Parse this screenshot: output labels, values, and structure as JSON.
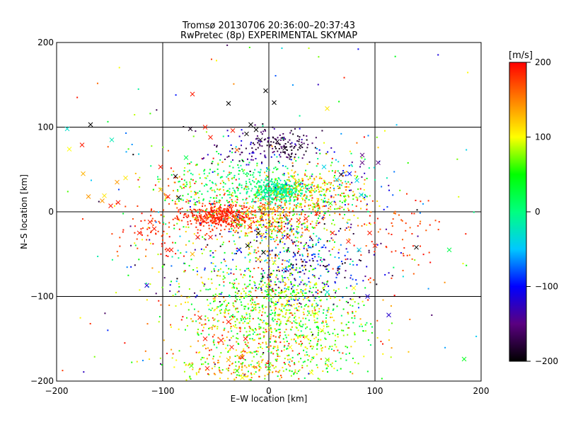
{
  "chart_data": {
    "type": "scatter",
    "title": "Tromsø 20130706 20:36:00–20:37:43",
    "subtitle": "RwPretec (8p) EXPERIMENTAL SKYMAP",
    "xlabel": "E–W location [km]",
    "ylabel": "N–S location [km]",
    "xlim": [
      -200,
      200
    ],
    "ylim": [
      -200,
      200
    ],
    "xticks": [
      -200,
      -100,
      0,
      100,
      200
    ],
    "yticks": [
      -200,
      -100,
      0,
      100,
      200
    ],
    "grid": true,
    "marker_styles": [
      "cross",
      "dot"
    ],
    "colorbar": {
      "label": "[m/s]",
      "range": [
        -200,
        200
      ],
      "ticks": [
        200,
        100,
        0,
        -100,
        -200
      ],
      "colors": [
        "#000000",
        "#5a0080",
        "#0000ff",
        "#00c8ff",
        "#00ff80",
        "#00ff00",
        "#ffff00",
        "#ff8000",
        "#ff0000"
      ]
    },
    "series": [
      {
        "marker": "cross",
        "points": [
          {
            "x": -168,
            "y": 103,
            "v": -200
          },
          {
            "x": -190,
            "y": 98,
            "v": -30
          },
          {
            "x": -188,
            "y": 74,
            "v": 100
          },
          {
            "x": -176,
            "y": 79,
            "v": 190
          },
          {
            "x": -175,
            "y": 45,
            "v": 130
          },
          {
            "x": -170,
            "y": 18,
            "v": 140
          },
          {
            "x": -155,
            "y": 19,
            "v": 110
          },
          {
            "x": -157,
            "y": 13,
            "v": 140
          },
          {
            "x": -143,
            "y": 35,
            "v": 140
          },
          {
            "x": -142,
            "y": 11,
            "v": 190
          },
          {
            "x": -149,
            "y": 7,
            "v": 190
          },
          {
            "x": -135,
            "y": 40,
            "v": 110
          },
          {
            "x": -148,
            "y": 85,
            "v": -20
          },
          {
            "x": -115,
            "y": -87,
            "v": -120
          },
          {
            "x": -102,
            "y": 53,
            "v": 190
          },
          {
            "x": -102,
            "y": 26,
            "v": 130
          },
          {
            "x": -95,
            "y": 18,
            "v": 190
          },
          {
            "x": -85,
            "y": 17,
            "v": -200
          },
          {
            "x": -88,
            "y": 42,
            "v": -200
          },
          {
            "x": -78,
            "y": 64,
            "v": 20
          },
          {
            "x": -72,
            "y": 139,
            "v": 190
          },
          {
            "x": -74,
            "y": 98,
            "v": -190
          },
          {
            "x": -60,
            "y": 100,
            "v": 190
          },
          {
            "x": -55,
            "y": 88,
            "v": 190
          },
          {
            "x": -38,
            "y": 128,
            "v": -200
          },
          {
            "x": -34,
            "y": 96,
            "v": 190
          },
          {
            "x": -21,
            "y": 92,
            "v": -200
          },
          {
            "x": -17,
            "y": 103,
            "v": -200
          },
          {
            "x": -12,
            "y": 97,
            "v": -200
          },
          {
            "x": -3,
            "y": 143,
            "v": -200
          },
          {
            "x": 5,
            "y": 129,
            "v": -200
          },
          {
            "x": 55,
            "y": 122,
            "v": 110
          },
          {
            "x": -8,
            "y": 85,
            "v": -190
          },
          {
            "x": 8,
            "y": 83,
            "v": -190
          },
          {
            "x": 15,
            "y": 75,
            "v": -190
          },
          {
            "x": 30,
            "y": 78,
            "v": -190
          },
          {
            "x": -30,
            "y": 73,
            "v": 160
          },
          {
            "x": 88,
            "y": 67,
            "v": -150
          },
          {
            "x": 88,
            "y": 58,
            "v": -150
          },
          {
            "x": 103,
            "y": 58,
            "v": -150
          },
          {
            "x": 68,
            "y": 44,
            "v": -190
          },
          {
            "x": 76,
            "y": 45,
            "v": -100
          },
          {
            "x": 83,
            "y": 37,
            "v": -40
          },
          {
            "x": 87,
            "y": 20,
            "v": -40
          },
          {
            "x": 64,
            "y": 38,
            "v": -40
          },
          {
            "x": 52,
            "y": 53,
            "v": -40
          },
          {
            "x": 58,
            "y": 10,
            "v": 60
          },
          {
            "x": -122,
            "y": -25,
            "v": 190
          },
          {
            "x": -112,
            "y": -12,
            "v": 190
          },
          {
            "x": -108,
            "y": -20,
            "v": 190
          },
          {
            "x": -92,
            "y": -45,
            "v": 190
          },
          {
            "x": -72,
            "y": -50,
            "v": 130
          },
          {
            "x": -67,
            "y": -30,
            "v": 190
          },
          {
            "x": -55,
            "y": -30,
            "v": 190
          },
          {
            "x": -45,
            "y": -10,
            "v": 190
          },
          {
            "x": -40,
            "y": -3,
            "v": 190
          },
          {
            "x": -35,
            "y": -2,
            "v": 190
          },
          {
            "x": -18,
            "y": -18,
            "v": 190
          },
          {
            "x": -10,
            "y": -25,
            "v": -200
          },
          {
            "x": -5,
            "y": -48,
            "v": -200
          },
          {
            "x": 10,
            "y": -22,
            "v": 190
          },
          {
            "x": 18,
            "y": -30,
            "v": 190
          },
          {
            "x": 28,
            "y": -10,
            "v": 190
          },
          {
            "x": 35,
            "y": -8,
            "v": 190
          },
          {
            "x": 45,
            "y": -2,
            "v": 190
          },
          {
            "x": 60,
            "y": -25,
            "v": 190
          },
          {
            "x": 75,
            "y": -35,
            "v": 190
          },
          {
            "x": 85,
            "y": -45,
            "v": -40
          },
          {
            "x": 95,
            "y": -25,
            "v": 190
          },
          {
            "x": 100,
            "y": -40,
            "v": 190
          },
          {
            "x": 139,
            "y": -42,
            "v": -200
          },
          {
            "x": 170,
            "y": -45,
            "v": 20
          },
          {
            "x": 113,
            "y": -122,
            "v": -120
          },
          {
            "x": 93,
            "y": -100,
            "v": -120
          },
          {
            "x": 80,
            "y": -90,
            "v": 100
          },
          {
            "x": 55,
            "y": -95,
            "v": -30
          },
          {
            "x": 45,
            "y": -120,
            "v": 100
          },
          {
            "x": 50,
            "y": -140,
            "v": 100
          },
          {
            "x": 35,
            "y": -148,
            "v": 100
          },
          {
            "x": 20,
            "y": -160,
            "v": 100
          },
          {
            "x": 55,
            "y": -175,
            "v": 70
          },
          {
            "x": -22,
            "y": -150,
            "v": 190
          },
          {
            "x": -38,
            "y": -130,
            "v": 190
          },
          {
            "x": -45,
            "y": -152,
            "v": 190
          },
          {
            "x": -60,
            "y": -150,
            "v": 190
          },
          {
            "x": -65,
            "y": -125,
            "v": 190
          },
          {
            "x": -35,
            "y": -160,
            "v": 190
          },
          {
            "x": -25,
            "y": -172,
            "v": 190
          },
          {
            "x": -38,
            "y": -175,
            "v": 130
          },
          {
            "x": -73,
            "y": -182,
            "v": 70
          },
          {
            "x": -58,
            "y": -185,
            "v": 190
          },
          {
            "x": -95,
            "y": -45,
            "v": 190
          },
          {
            "x": -30,
            "y": -188,
            "v": 60
          },
          {
            "x": 0,
            "y": -185,
            "v": 60
          },
          {
            "x": -25,
            "y": -196,
            "v": 100
          },
          {
            "x": 40,
            "y": -190,
            "v": 100
          },
          {
            "x": 184,
            "y": -174,
            "v": 40
          },
          {
            "x": -20,
            "y": -40,
            "v": -200
          },
          {
            "x": -10,
            "y": -56,
            "v": 130
          },
          {
            "x": -28,
            "y": -45,
            "v": -100
          },
          {
            "x": 5,
            "y": -60,
            "v": 100
          },
          {
            "x": 0,
            "y": 10,
            "v": 150
          },
          {
            "x": -5,
            "y": 5,
            "v": 150
          },
          {
            "x": 10,
            "y": 5,
            "v": 150
          }
        ]
      },
      {
        "marker": "dot",
        "clusters": [
          {
            "cx": -48,
            "cy": -5,
            "sx": 18,
            "sy": 7,
            "n": 420,
            "vmin": 170,
            "vmax": 200
          },
          {
            "cx": 10,
            "cy": 25,
            "sx": 12,
            "sy": 6,
            "n": 360,
            "vmin": -30,
            "vmax": 10
          },
          {
            "cx": 35,
            "cy": 30,
            "sx": 22,
            "sy": 10,
            "n": 160,
            "vmin": 60,
            "vmax": 160
          },
          {
            "cx": -20,
            "cy": 35,
            "sx": 25,
            "sy": 15,
            "n": 180,
            "vmin": -20,
            "vmax": 40
          },
          {
            "cx": 15,
            "cy": 78,
            "sx": 14,
            "sy": 9,
            "n": 110,
            "vmin": -200,
            "vmax": -150
          },
          {
            "cx": -15,
            "cy": 72,
            "sx": 20,
            "sy": 15,
            "n": 70,
            "vmin": -200,
            "vmax": -100
          },
          {
            "cx": 0,
            "cy": -10,
            "sx": 20,
            "sy": 14,
            "n": 260,
            "vmin": 60,
            "vmax": 200
          },
          {
            "cx": 15,
            "cy": -45,
            "sx": 25,
            "sy": 30,
            "n": 320,
            "vmin": -200,
            "vmax": 200
          },
          {
            "cx": 0,
            "cy": -105,
            "sx": 38,
            "sy": 22,
            "n": 460,
            "vmin": 0,
            "vmax": 130
          },
          {
            "cx": -10,
            "cy": -150,
            "sx": 45,
            "sy": 30,
            "n": 420,
            "vmin": 40,
            "vmax": 200
          },
          {
            "cx": 30,
            "cy": -150,
            "sx": 35,
            "sy": 30,
            "n": 250,
            "vmin": 0,
            "vmax": 120
          },
          {
            "cx": -20,
            "cy": -185,
            "sx": 35,
            "sy": 10,
            "n": 140,
            "vmin": 40,
            "vmax": 190
          },
          {
            "cx": 45,
            "cy": -70,
            "sx": 25,
            "sy": 20,
            "n": 170,
            "vmin": -200,
            "vmax": -60
          },
          {
            "cx": -65,
            "cy": 25,
            "sx": 30,
            "sy": 18,
            "n": 180,
            "vmin": 0,
            "vmax": 200
          },
          {
            "cx": 40,
            "cy": 10,
            "sx": 30,
            "sy": 15,
            "n": 170,
            "vmin": 20,
            "vmax": 200
          },
          {
            "cx": 70,
            "cy": 30,
            "sx": 25,
            "sy": 25,
            "n": 120,
            "vmin": -150,
            "vmax": 200
          },
          {
            "cx": -110,
            "cy": -20,
            "sx": 22,
            "sy": 15,
            "n": 70,
            "vmin": 170,
            "vmax": 200
          },
          {
            "cx": 120,
            "cy": -30,
            "sx": 30,
            "sy": 25,
            "n": 70,
            "vmin": 150,
            "vmax": 200
          },
          {
            "cx": -70,
            "cy": -60,
            "sx": 30,
            "sy": 30,
            "n": 110,
            "vmin": -200,
            "vmax": 200
          },
          {
            "cx": 0,
            "cy": 0,
            "sx": 110,
            "sy": 110,
            "n": 260,
            "vmin": -200,
            "vmax": 200
          }
        ]
      }
    ]
  }
}
